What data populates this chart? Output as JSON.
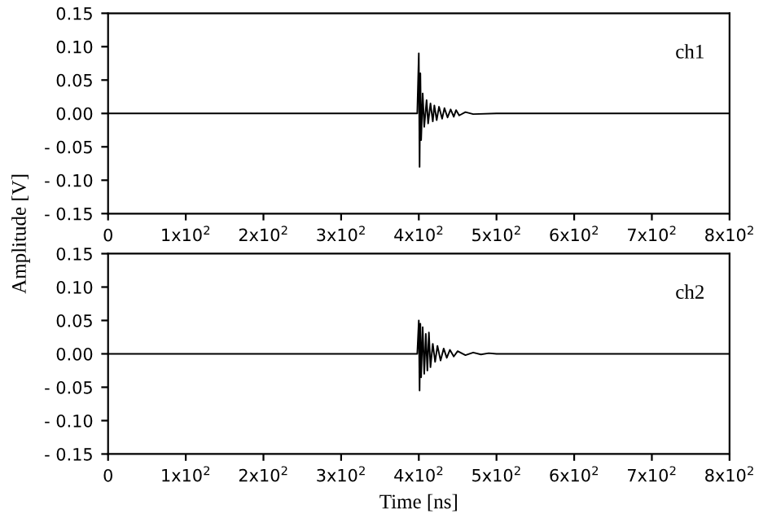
{
  "chart_data": [
    {
      "type": "line",
      "ylabel": "Amplitude [V]",
      "annotations": [
        "ch1"
      ],
      "series": [
        {
          "color": "#000000",
          "x": [
            0,
            100,
            200,
            300,
            398,
            400,
            401,
            402,
            403,
            405,
            407,
            410,
            412,
            415,
            418,
            420,
            423,
            426,
            430,
            433,
            437,
            441,
            445,
            448,
            452,
            460,
            470,
            500,
            600,
            700,
            800
          ],
          "values": [
            0,
            0,
            0,
            0,
            0,
            0.09,
            -0.08,
            0.06,
            -0.04,
            0.03,
            -0.02,
            0.02,
            -0.015,
            0.015,
            -0.012,
            0.012,
            -0.01,
            0.01,
            -0.008,
            0.008,
            -0.006,
            0.006,
            -0.005,
            0.005,
            -0.003,
            0.002,
            -0.001,
            0,
            0,
            0,
            0
          ]
        }
      ],
      "xlim": [
        0,
        800
      ],
      "ylim": [
        -0.15,
        0.15
      ],
      "xticks": [
        0,
        {
          "value": 100,
          "label": "1x10$^{2}$"
        },
        {
          "value": 200,
          "label": "2x10$^{2}$"
        },
        {
          "value": 300,
          "label": "3x10$^{2}$"
        },
        {
          "value": 400,
          "label": "4x10$^{2}$"
        },
        {
          "value": 500,
          "label": "5x10$^{2}$"
        },
        {
          "value": 600,
          "label": "6x10$^{2}$"
        },
        {
          "value": 700,
          "label": "7x10$^{2}$"
        },
        {
          "value": 800,
          "label": "8x10$^{2}$"
        }
      ],
      "yticks": [
        {
          "value": -0.15,
          "label": "- 0.15"
        },
        {
          "value": -0.1,
          "label": "- 0.10"
        },
        {
          "value": -0.05,
          "label": "- 0.05"
        },
        {
          "value": 0,
          "label": "0.00"
        },
        {
          "value": 0.05,
          "label": "0.05"
        },
        {
          "value": 0.1,
          "label": "0.10"
        },
        {
          "value": 0.15,
          "label": "0.15"
        }
      ],
      "grid": false,
      "legend": false
    },
    {
      "type": "line",
      "xlabel": "Time [ns]",
      "annotations": [
        "ch2"
      ],
      "series": [
        {
          "color": "#000000",
          "x": [
            0,
            100,
            200,
            300,
            398,
            400,
            401,
            402,
            403,
            405,
            407,
            409,
            411,
            413,
            415,
            418,
            421,
            424,
            428,
            432,
            436,
            440,
            445,
            450,
            460,
            470,
            480,
            490,
            500,
            600,
            700,
            800
          ],
          "values": [
            0,
            0,
            0,
            0,
            0,
            0.05,
            -0.055,
            0.045,
            -0.035,
            0.04,
            -0.03,
            0.03,
            -0.025,
            0.032,
            -0.02,
            0.015,
            -0.012,
            0.012,
            -0.01,
            0.008,
            -0.006,
            0.006,
            -0.004,
            0.004,
            -0.002,
            0.002,
            -0.001,
            0.001,
            0,
            0,
            0,
            0
          ]
        }
      ],
      "xlim": [
        0,
        800
      ],
      "ylim": [
        -0.15,
        0.15
      ],
      "xticks": [
        0,
        {
          "value": 100,
          "label": "1x10$^{2}$"
        },
        {
          "value": 200,
          "label": "2x10$^{2}$"
        },
        {
          "value": 300,
          "label": "3x10$^{2}$"
        },
        {
          "value": 400,
          "label": "4x10$^{2}$"
        },
        {
          "value": 500,
          "label": "5x10$^{2}$"
        },
        {
          "value": 600,
          "label": "6x10$^{2}$"
        },
        {
          "value": 700,
          "label": "7x10$^{2}$"
        },
        {
          "value": 800,
          "label": "8x10$^{2}$"
        }
      ],
      "yticks": [
        {
          "value": -0.15,
          "label": "- 0.15"
        },
        {
          "value": -0.1,
          "label": "- 0.10"
        },
        {
          "value": -0.05,
          "label": "- 0.05"
        },
        {
          "value": 0,
          "label": "0.00"
        },
        {
          "value": 0.05,
          "label": "0.05"
        },
        {
          "value": 0.1,
          "label": "0.10"
        },
        {
          "value": 0.15,
          "label": "0.15"
        }
      ],
      "grid": false,
      "legend": false
    }
  ]
}
